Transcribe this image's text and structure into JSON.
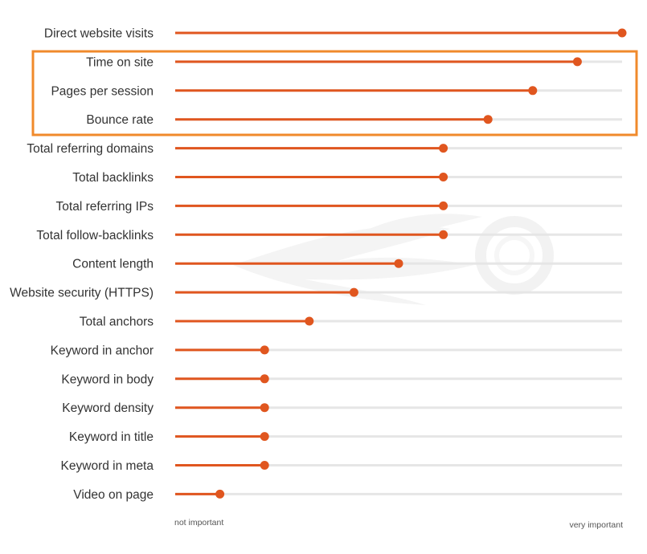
{
  "colors": {
    "accent": "#e0561f",
    "track": "#e6e6e6",
    "highlight_box": "#f08a2b",
    "watermark": "#f2f2f2",
    "text": "#333333"
  },
  "chart_data": {
    "type": "dot-bar",
    "orientation": "horizontal",
    "title": "",
    "xlabel": "",
    "ylabel": "",
    "axis_labels": {
      "min": "not important",
      "max": "very important"
    },
    "xlim": [
      0,
      100
    ],
    "grid": false,
    "legend": "none",
    "categories": [
      "Direct website visits",
      "Time on site",
      "Pages per session",
      "Bounce rate",
      "Total referring domains",
      "Total backlinks",
      "Total referring IPs",
      "Total follow-backlinks",
      "Content length",
      "Website security (HTTPS)",
      "Total anchors",
      "Keyword in anchor",
      "Keyword in body",
      "Keyword density",
      "Keyword in title",
      "Keyword in meta",
      "Video on page"
    ],
    "values": [
      100,
      90,
      80,
      70,
      60,
      60,
      60,
      60,
      50,
      40,
      30,
      20,
      20,
      20,
      20,
      20,
      10
    ],
    "highlighted_categories": [
      "Time on site",
      "Pages per session",
      "Bounce rate"
    ]
  }
}
